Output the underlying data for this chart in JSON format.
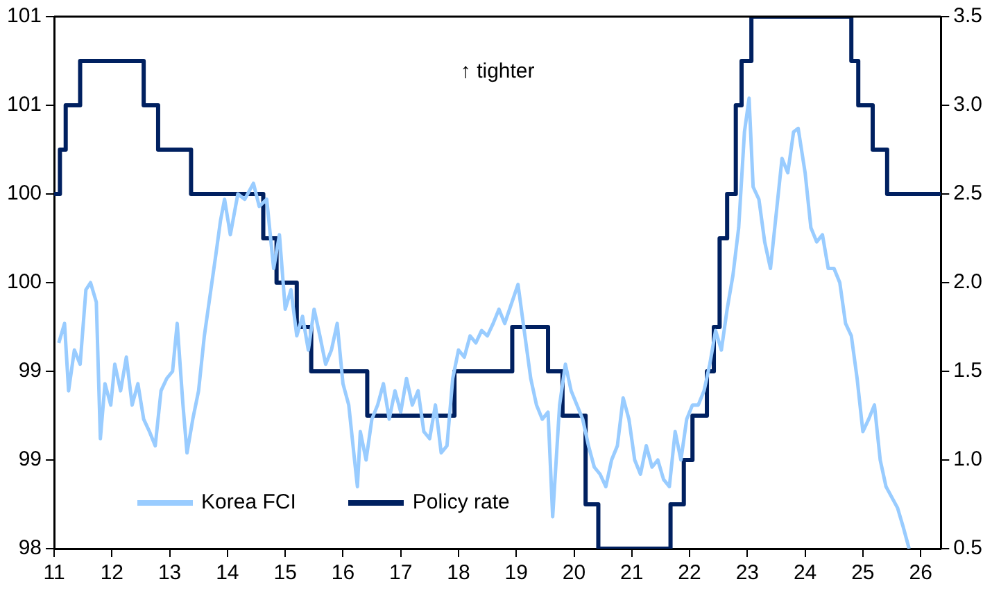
{
  "chart_data": {
    "type": "line",
    "annotations": [
      "↑ tighter"
    ],
    "xlim": [
      11,
      26.35
    ],
    "xticks": [
      11,
      12,
      13,
      14,
      15,
      16,
      17,
      18,
      19,
      20,
      21,
      22,
      23,
      24,
      25,
      26
    ],
    "ylim": [
      98,
      101
    ],
    "yticks": [
      98,
      {
        "value": 98.5,
        "label": "99"
      },
      99,
      {
        "value": 99.5,
        "label": "100"
      },
      100,
      {
        "value": 100.5,
        "label": "101"
      },
      101
    ],
    "y2lim": [
      0.5,
      3.5
    ],
    "y2ticks": [
      0.5,
      {
        "value": 1,
        "label": "1.0"
      },
      1.5,
      {
        "value": 2,
        "label": "2.0"
      },
      2.5,
      {
        "value": 3,
        "label": "3.0"
      },
      3.5
    ],
    "grid": false,
    "legend": "bottom",
    "series": [
      {
        "name": "Korea FCI",
        "color": "#99ccff",
        "x": [
          11.08,
          11.18,
          11.25,
          11.35,
          11.45,
          11.55,
          11.63,
          11.73,
          11.8,
          11.88,
          11.98,
          12.05,
          12.15,
          12.25,
          12.35,
          12.45,
          12.55,
          12.65,
          12.75,
          12.85,
          12.95,
          13.05,
          13.13,
          13.23,
          13.3,
          13.4,
          13.5,
          13.6,
          13.7,
          13.8,
          13.88,
          13.95,
          14.05,
          14.18,
          14.3,
          14.45,
          14.55,
          14.68,
          14.8,
          14.9,
          15,
          15.1,
          15.2,
          15.3,
          15.4,
          15.5,
          15.6,
          15.7,
          15.8,
          15.9,
          16,
          16.1,
          16.2,
          16.25,
          16.3,
          16.4,
          16.5,
          16.6,
          16.7,
          16.8,
          16.9,
          17,
          17.1,
          17.2,
          17.3,
          17.4,
          17.5,
          17.6,
          17.7,
          17.8,
          17.9,
          18,
          18.1,
          18.2,
          18.3,
          18.4,
          18.5,
          18.6,
          18.7,
          18.8,
          19.03,
          19.15,
          19.25,
          19.35,
          19.45,
          19.55,
          19.63,
          19.75,
          19.85,
          19.95,
          20.05,
          20.15,
          20.25,
          20.35,
          20.45,
          20.55,
          20.65,
          20.75,
          20.85,
          20.95,
          21.05,
          21.15,
          21.25,
          21.35,
          21.45,
          21.55,
          21.65,
          21.75,
          21.85,
          21.95,
          22.05,
          22.15,
          22.25,
          22.35,
          22.45,
          22.55,
          22.65,
          22.75,
          22.85,
          22.95,
          23.03,
          23.1,
          23.2,
          23.3,
          23.4,
          23.5,
          23.6,
          23.7,
          23.8,
          23.88,
          24,
          24.1,
          24.2,
          24.3,
          24.4,
          24.5,
          24.6,
          24.7,
          24.8,
          24.9,
          25,
          25.1,
          25.2,
          25.3,
          25.4,
          25.6,
          25.7,
          25.8
        ],
        "values": [
          99.16,
          99.27,
          98.89,
          99.12,
          99.04,
          99.46,
          99.5,
          99.39,
          98.62,
          98.93,
          98.81,
          99.04,
          98.89,
          99.08,
          98.81,
          98.93,
          98.73,
          98.66,
          98.58,
          98.89,
          98.96,
          99,
          99.27,
          98.81,
          98.54,
          98.73,
          98.89,
          99.2,
          99.43,
          99.66,
          99.85,
          99.97,
          99.77,
          100,
          99.97,
          100.06,
          99.93,
          99.97,
          99.58,
          99.77,
          99.35,
          99.46,
          99.2,
          99.31,
          99.12,
          99.35,
          99.2,
          99.04,
          99.12,
          99.27,
          98.93,
          98.81,
          98.5,
          98.35,
          98.66,
          98.5,
          98.73,
          98.81,
          98.93,
          98.73,
          98.89,
          98.77,
          98.96,
          98.81,
          98.89,
          98.66,
          98.62,
          98.81,
          98.54,
          98.58,
          98.96,
          99.12,
          99.08,
          99.2,
          99.16,
          99.23,
          99.2,
          99.27,
          99.35,
          99.27,
          99.49,
          99.2,
          98.96,
          98.81,
          98.73,
          98.77,
          98.18,
          98.81,
          99.04,
          98.89,
          98.81,
          98.73,
          98.58,
          98.46,
          98.42,
          98.35,
          98.5,
          98.58,
          98.85,
          98.73,
          98.5,
          98.42,
          98.58,
          98.46,
          98.5,
          98.39,
          98.35,
          98.66,
          98.5,
          98.73,
          98.81,
          98.81,
          98.89,
          99.04,
          99.23,
          99.12,
          99.35,
          99.54,
          99.81,
          100.35,
          100.54,
          100.04,
          99.97,
          99.73,
          99.58,
          99.89,
          100.2,
          100.12,
          100.35,
          100.37,
          100.12,
          99.81,
          99.73,
          99.77,
          99.58,
          99.58,
          99.5,
          99.27,
          99.2,
          98.96,
          98.66,
          98.73,
          98.81,
          98.5,
          98.35,
          98.23,
          98.12,
          98
        ]
      },
      {
        "name": "Policy rate",
        "type": "step",
        "axis": "y2",
        "color": "#002060",
        "x": [
          11,
          11.1,
          11.2,
          11.45,
          12.55,
          12.8,
          13.37,
          14.62,
          14.85,
          15.2,
          15.45,
          16.42,
          17.93,
          18.93,
          19.55,
          19.8,
          20.2,
          20.42,
          21.67,
          21.9,
          22.05,
          22.3,
          22.42,
          22.52,
          22.65,
          22.8,
          22.9,
          23.07,
          24.8,
          24.92,
          25.17,
          25.42,
          26.35
        ],
        "values": [
          2.5,
          2.75,
          3,
          3.25,
          3,
          2.75,
          2.5,
          2.25,
          2,
          1.75,
          1.5,
          1.25,
          1.5,
          1.75,
          1.5,
          1.25,
          0.75,
          0.5,
          0.75,
          1,
          1.25,
          1.5,
          1.75,
          2.25,
          2.5,
          3,
          3.25,
          3.5,
          3.25,
          3,
          2.75,
          2.5,
          2.5
        ]
      }
    ]
  }
}
